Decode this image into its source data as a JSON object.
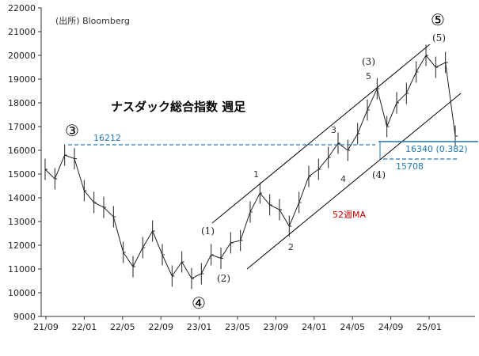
{
  "chart_data": {
    "type": "line",
    "title": "ナスダック総合指数 週足",
    "source": "(出所)  Bloomberg",
    "xlabel": "",
    "ylabel": "",
    "ylim": [
      9000,
      22000
    ],
    "y_ticks": [
      9000,
      10000,
      11000,
      12000,
      13000,
      14000,
      15000,
      16000,
      17000,
      18000,
      19000,
      20000,
      21000,
      22000
    ],
    "x_ticks": [
      "21/09",
      "22/01",
      "22/05",
      "22/09",
      "23/01",
      "23/05",
      "23/09",
      "24/01",
      "24/05",
      "24/09",
      "25/01"
    ],
    "grid": false,
    "series": [
      {
        "x": [
          "21/09",
          "21/10",
          "21/11",
          "21/12",
          "22/01",
          "22/02",
          "22/03",
          "22/04",
          "22/05",
          "22/06",
          "22/07",
          "22/08",
          "22/09",
          "22/10",
          "22/11",
          "22/12",
          "23/01",
          "23/02",
          "23/03",
          "23/04",
          "23/05",
          "23/06",
          "23/07",
          "23/08",
          "23/09",
          "23/10",
          "23/11",
          "23/12",
          "24/01",
          "24/02",
          "24/03",
          "24/04",
          "24/05",
          "24/06",
          "24/07",
          "24/08",
          "24/09",
          "24/10",
          "24/11",
          "24/12",
          "25/01",
          "25/02",
          "25/03"
        ],
        "values": [
          15200,
          14800,
          15800,
          15650,
          14300,
          13800,
          13600,
          13200,
          11700,
          11100,
          11900,
          12600,
          11600,
          10700,
          11300,
          10600,
          10800,
          11600,
          11450,
          12100,
          12200,
          13400,
          14200,
          13700,
          13500,
          12800,
          13800,
          14900,
          15200,
          15700,
          16300,
          16000,
          16700,
          17700,
          18600,
          17000,
          18000,
          18400,
          19300,
          20000,
          19500,
          19700,
          16600
        ]
      }
    ],
    "annotations": {
      "wave_3_circled": "③",
      "wave_4_circled": "④",
      "wave_5_circled": "⑤",
      "wave_1": "(1)",
      "wave_2": "(2)",
      "wave_3": "(3)",
      "wave_4": "(4)",
      "wave_5": "(5)",
      "sub_1": "1",
      "sub_2": "2",
      "sub_3": "3",
      "sub_4": "4",
      "sub_5": "5",
      "level_16212": "16212",
      "level_16340": "16340 (0.382)",
      "level_15708": "15708",
      "ma_label": "52週MA"
    },
    "colors": {
      "price": "#222222",
      "level_line": "#1f77b4",
      "ma_label": "#cc0000",
      "channel": "#000000"
    }
  }
}
